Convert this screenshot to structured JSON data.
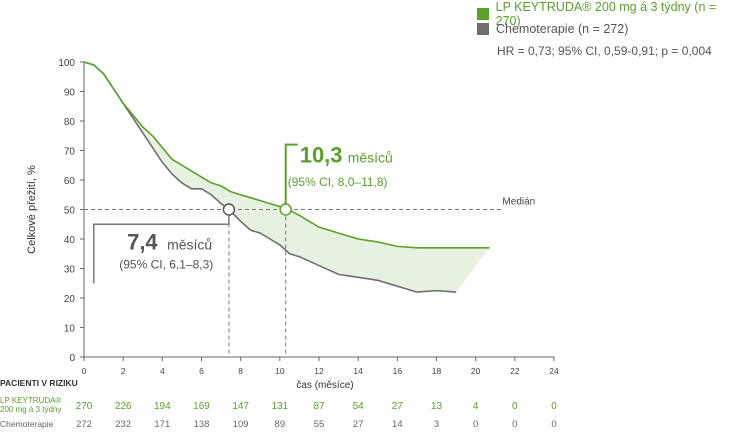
{
  "legend": {
    "keytruda": "LP KEYTRUDA® 200 mg á 3 týdny (n = 270)",
    "chemo": "Chemoterapie (n = 272)",
    "hr": "HR = 0,73; 95% CI, 0,59-0,91; p = 0,004",
    "keytruda_color": "#5aa02c",
    "chemo_color": "#6e6e6e"
  },
  "chart_data": {
    "type": "line",
    "ylabel": "Celkové přežití, %",
    "xlabel": "čas (měsíce)",
    "xlim": [
      0,
      24
    ],
    "ylim": [
      0,
      100
    ],
    "xticks": [
      0,
      2,
      4,
      6,
      8,
      10,
      12,
      14,
      16,
      18,
      20,
      22,
      24
    ],
    "yticks": [
      0,
      10,
      20,
      30,
      40,
      50,
      60,
      70,
      80,
      90,
      100
    ],
    "median_label": "Medián",
    "series": [
      {
        "name": "LP KEYTRUDA® 200 mg á 3 týdny",
        "color": "#5aa02c",
        "x": [
          0,
          0.5,
          1,
          1.5,
          2,
          2.5,
          3,
          3.5,
          4,
          4.5,
          5,
          5.5,
          6,
          6.5,
          7,
          7.5,
          8,
          8.5,
          9,
          9.5,
          10,
          10.3,
          11,
          12,
          13,
          14,
          15,
          16,
          17,
          18,
          19,
          20,
          20.7
        ],
        "y": [
          100,
          99,
          96,
          91,
          86,
          82,
          78,
          75,
          71,
          67,
          65,
          63,
          61,
          59,
          58,
          56,
          55,
          54,
          53,
          52,
          51,
          50.5,
          48,
          44,
          42,
          40,
          39,
          37.5,
          37,
          37,
          37,
          37,
          37
        ]
      },
      {
        "name": "Chemoterapie",
        "color": "#6e6e6e",
        "x": [
          0,
          0.5,
          1,
          1.5,
          2,
          2.5,
          3,
          3.5,
          4,
          4.5,
          5,
          5.5,
          6,
          6.5,
          7,
          7.4,
          8,
          8.5,
          9,
          9.5,
          10,
          10.5,
          11,
          12,
          13,
          14,
          15,
          16,
          16.5,
          17,
          18,
          19
        ],
        "y": [
          100,
          99,
          96,
          91,
          86,
          81,
          76,
          71,
          66,
          62,
          59,
          57,
          57,
          55,
          52,
          50,
          46,
          43,
          42,
          40,
          38,
          35,
          34,
          31,
          28,
          27,
          26,
          24,
          23,
          22,
          22.5,
          22
        ]
      }
    ],
    "annotations": {
      "keytruda_median_value": "10,3",
      "keytruda_median_unit": "měsíců",
      "keytruda_median_ci": "(95% CI, 8,0–11,8)",
      "keytruda_median_x": 10.3,
      "chemo_median_value": "7,4",
      "chemo_median_unit": "měsíců",
      "chemo_median_ci": "(95% CI, 6,1–8,3)",
      "chemo_median_x": 7.4
    }
  },
  "risk_table": {
    "title": "PACIENTI V RIZIKU",
    "keytruda_label": "LP KEYTRUDA® 200 mg á 3 týdny",
    "chemo_label": "Chemoterapie",
    "keytruda": [
      270,
      226,
      194,
      169,
      147,
      131,
      87,
      54,
      27,
      13,
      4,
      0,
      0
    ],
    "chemo": [
      272,
      232,
      171,
      138,
      109,
      89,
      55,
      27,
      14,
      3,
      0,
      0,
      0
    ]
  }
}
